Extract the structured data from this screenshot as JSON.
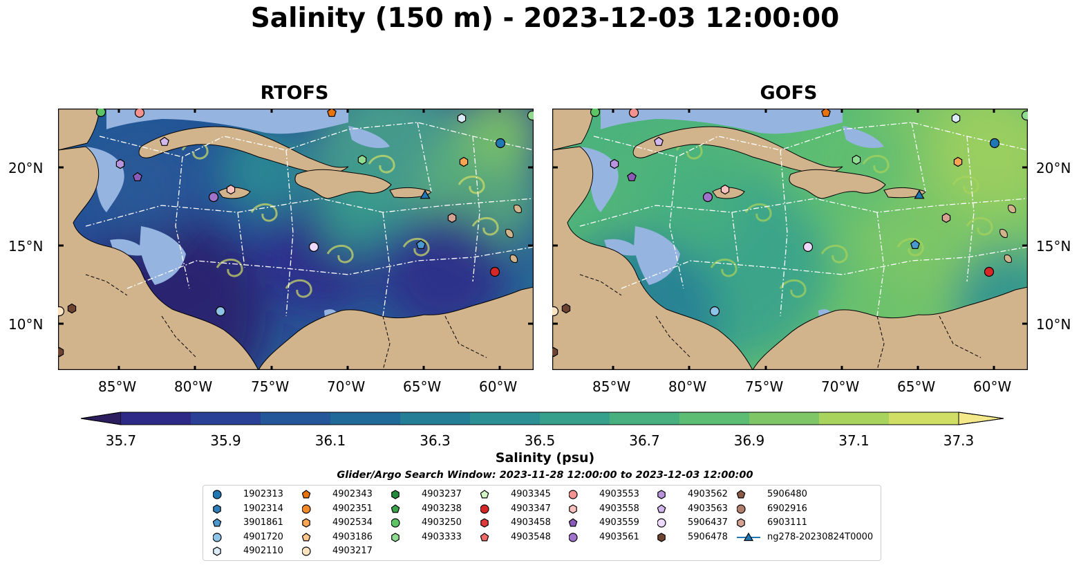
{
  "title": "Salinity (150 m) - 2023-12-03 12:00:00",
  "panels": [
    {
      "title": "RTOFS",
      "theme": "rtofs"
    },
    {
      "title": "GOFS",
      "theme": "gofs"
    }
  ],
  "axes": {
    "lon_labels": [
      "85°W",
      "80°W",
      "75°W",
      "70°W",
      "65°W",
      "60°W"
    ],
    "lat_labels": [
      "20°N",
      "15°N",
      "10°N"
    ]
  },
  "colorbar": {
    "ticks": [
      "35.7",
      "35.9",
      "36.1",
      "36.3",
      "36.5",
      "36.7",
      "36.9",
      "37.1",
      "37.3"
    ],
    "label": "Salinity (psu)",
    "colors": [
      "#2c1e5e",
      "#2d2a87",
      "#2a3f96",
      "#24569a",
      "#1f6a98",
      "#247e96",
      "#2b8f93",
      "#36a08d",
      "#48b07f",
      "#5dbd72",
      "#7fc766",
      "#a8d35d",
      "#d1de66",
      "#f3e98a"
    ]
  },
  "search_window": "Glider/Argo Search Window: 2023-11-28 12:00:00 to 2023-12-03 12:00:00",
  "legend": {
    "columns": [
      [
        {
          "label": "1902313",
          "marker": "circle",
          "color": "#1f77b4"
        },
        {
          "label": "1902314",
          "marker": "hexagon",
          "color": "#2e7fb8"
        },
        {
          "label": "3901861",
          "marker": "pentagon",
          "color": "#4a98d0"
        },
        {
          "label": "4901720",
          "marker": "circle",
          "color": "#8ec3e8"
        },
        {
          "label": "4902110",
          "marker": "hexagon",
          "color": "#d9ecf8"
        }
      ],
      [
        {
          "label": "4902343",
          "marker": "pentagon",
          "color": "#e8720c"
        },
        {
          "label": "4902351",
          "marker": "circle",
          "color": "#f58a2a"
        },
        {
          "label": "4902534",
          "marker": "hexagon",
          "color": "#fba553"
        },
        {
          "label": "4903186",
          "marker": "pentagon",
          "color": "#fdc78e"
        },
        {
          "label": "4903217",
          "marker": "circle",
          "color": "#fee3c1"
        }
      ],
      [
        {
          "label": "4903237",
          "marker": "hexagon",
          "color": "#238b3a"
        },
        {
          "label": "4903238",
          "marker": "pentagon",
          "color": "#3ba34c"
        },
        {
          "label": "4903250",
          "marker": "circle",
          "color": "#5cc462"
        },
        {
          "label": "4903333",
          "marker": "hexagon",
          "color": "#8fdc90"
        }
      ],
      [
        {
          "label": "4903345",
          "marker": "pentagon",
          "color": "#d4f5c4"
        },
        {
          "label": "4903347",
          "marker": "circle",
          "color": "#d62728"
        },
        {
          "label": "4903458",
          "marker": "hexagon",
          "color": "#e0393a"
        },
        {
          "label": "4903548",
          "marker": "pentagon",
          "color": "#ee6b68"
        }
      ],
      [
        {
          "label": "4903553",
          "marker": "circle",
          "color": "#f4928f"
        },
        {
          "label": "4903558",
          "marker": "hexagon",
          "color": "#fbc2bd"
        },
        {
          "label": "4903559",
          "marker": "pentagon",
          "color": "#8a5cb8"
        },
        {
          "label": "4903561",
          "marker": "circle",
          "color": "#9e73c9"
        }
      ],
      [
        {
          "label": "4903562",
          "marker": "hexagon",
          "color": "#b794dc"
        },
        {
          "label": "4903563",
          "marker": "pentagon",
          "color": "#d2b7ee"
        },
        {
          "label": "5906437",
          "marker": "circle",
          "color": "#ecd9fb"
        },
        {
          "label": "5906478",
          "marker": "hexagon",
          "color": "#6e4330"
        }
      ],
      [
        {
          "label": "5906480",
          "marker": "pentagon",
          "color": "#8c5a48"
        },
        {
          "label": "6902916",
          "marker": "circle",
          "color": "#b0806c"
        },
        {
          "label": "6903111",
          "marker": "hexagon",
          "color": "#d4a291"
        },
        {
          "label": "ng278-20230824T0000",
          "marker": "triangle-line",
          "color": "#1f77b4"
        }
      ]
    ]
  },
  "colors": {
    "land": "#d2b48c",
    "shelf": "#95b4e0"
  }
}
